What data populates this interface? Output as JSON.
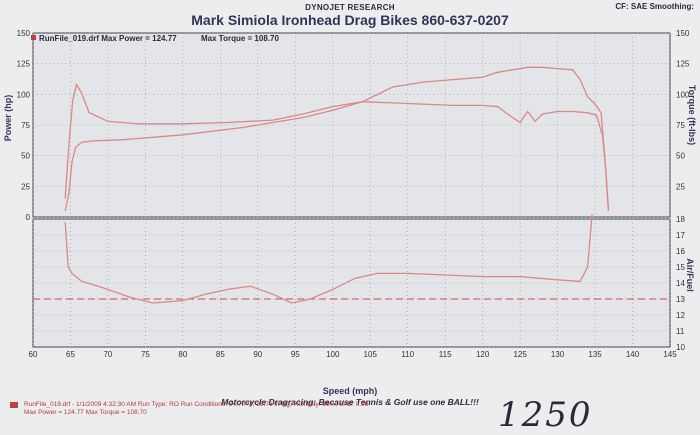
{
  "header": {
    "org": "DYNOJET RESEARCH",
    "title": "Mark Simiola Ironhead Drag Bikes 860-637-0207",
    "corner": "CF: SAE Smoothing:"
  },
  "legend": {
    "runfile": "RunFile_019.drf Max Power = 124.77",
    "torque": "Max Torque = 108.70"
  },
  "caption": "Motorcycle Dragracing: Because Tennis & Golf use one BALL!!!",
  "footer": {
    "line1": "RunFile_019.drf - 1/1/2009 4:32:30 AM  Run Type: RO  Run Conditions: 54.70 °F, 29.76 in-Hg, Humidity: 16%, SAE: 0.96",
    "line2": "Max Power = 124.77  Max Torque = 108.70"
  },
  "handwritten_note": "1250",
  "colors": {
    "background": "#ecedef",
    "plot": "#e4e5e8",
    "curve": "#d98888",
    "dashed": "#d04848"
  },
  "chart_data": [
    {
      "type": "line",
      "panel": "power-torque",
      "xlabel": "Speed (mph)",
      "ylabel": "Power (hp)",
      "y2label": "Torque (ft-lbs)",
      "xlim": [
        60,
        145
      ],
      "ylim": [
        0,
        150
      ],
      "y2lim": [
        0,
        150
      ],
      "x_ticks": [
        60,
        65,
        70,
        75,
        80,
        85,
        90,
        95,
        100,
        105,
        110,
        115,
        120,
        125,
        130,
        135,
        140,
        145
      ],
      "y_ticks": [
        0,
        25,
        50,
        75,
        100,
        125,
        150
      ],
      "y2_ticks": [
        0,
        25,
        50,
        75,
        100,
        125,
        150
      ],
      "grid": true,
      "series": [
        {
          "axis": "left",
          "points": [
            [
              64.3,
              5
            ],
            [
              64.8,
              20
            ],
            [
              65.2,
              45
            ],
            [
              65.7,
              57
            ],
            [
              66.5,
              61
            ],
            [
              68,
              62
            ],
            [
              72,
              63
            ],
            [
              76,
              65
            ],
            [
              80,
              67
            ],
            [
              84,
              70
            ],
            [
              88,
              73
            ],
            [
              92,
              77
            ],
            [
              96,
              81
            ],
            [
              100,
              87
            ],
            [
              104,
              94
            ],
            [
              108,
              106
            ],
            [
              112,
              110
            ],
            [
              116,
              112
            ],
            [
              120,
              114
            ],
            [
              122,
              118
            ],
            [
              124,
              120
            ],
            [
              126,
              122
            ],
            [
              128,
              122
            ],
            [
              130,
              121
            ],
            [
              132,
              120
            ],
            [
              133,
              112
            ],
            [
              134,
              98
            ],
            [
              135,
              92
            ],
            [
              135.8,
              85
            ],
            [
              136.4,
              40
            ],
            [
              136.8,
              5
            ]
          ]
        },
        {
          "axis": "right",
          "points": [
            [
              64.3,
              15
            ],
            [
              64.8,
              60
            ],
            [
              65.3,
              95
            ],
            [
              65.8,
              108
            ],
            [
              66.4,
              102
            ],
            [
              67.5,
              85
            ],
            [
              70,
              78
            ],
            [
              74,
              76
            ],
            [
              80,
              76
            ],
            [
              86,
              77
            ],
            [
              92,
              79
            ],
            [
              96,
              84
            ],
            [
              100,
              90
            ],
            [
              104,
              94
            ],
            [
              108,
              93
            ],
            [
              112,
              92
            ],
            [
              116,
              91
            ],
            [
              120,
              91
            ],
            [
              122,
              90
            ],
            [
              124,
              81
            ],
            [
              125,
              77
            ],
            [
              126,
              86
            ],
            [
              127,
              78
            ],
            [
              128,
              84
            ],
            [
              130,
              86
            ],
            [
              132,
              86
            ],
            [
              134,
              85
            ],
            [
              135.2,
              83
            ],
            [
              136,
              66
            ],
            [
              136.4,
              40
            ],
            [
              136.8,
              5
            ]
          ]
        }
      ]
    },
    {
      "type": "line",
      "panel": "air-fuel",
      "ylabel": "Air/Fuel",
      "xlim": [
        60,
        145
      ],
      "ylim": [
        10,
        18
      ],
      "y_ticks": [
        10,
        11,
        12,
        13,
        14,
        15,
        16,
        17,
        18
      ],
      "reference_line": 13,
      "grid": true,
      "series": [
        {
          "points": [
            [
              64.3,
              17.8
            ],
            [
              64.7,
              15
            ],
            [
              65.2,
              14.6
            ],
            [
              66.5,
              14.1
            ],
            [
              68,
              13.9
            ],
            [
              70,
              13.6
            ],
            [
              73,
              13.1
            ],
            [
              76,
              12.75
            ],
            [
              80,
              12.9
            ],
            [
              83,
              13.3
            ],
            [
              86,
              13.6
            ],
            [
              89,
              13.8
            ],
            [
              92,
              13.3
            ],
            [
              94.5,
              12.75
            ],
            [
              97,
              13.0
            ],
            [
              100,
              13.6
            ],
            [
              103,
              14.3
            ],
            [
              106,
              14.6
            ],
            [
              110,
              14.6
            ],
            [
              115,
              14.5
            ],
            [
              120,
              14.4
            ],
            [
              125,
              14.4
            ],
            [
              130,
              14.2
            ],
            [
              133,
              14.1
            ],
            [
              134,
              15
            ],
            [
              134.6,
              18.3
            ]
          ]
        }
      ]
    }
  ]
}
